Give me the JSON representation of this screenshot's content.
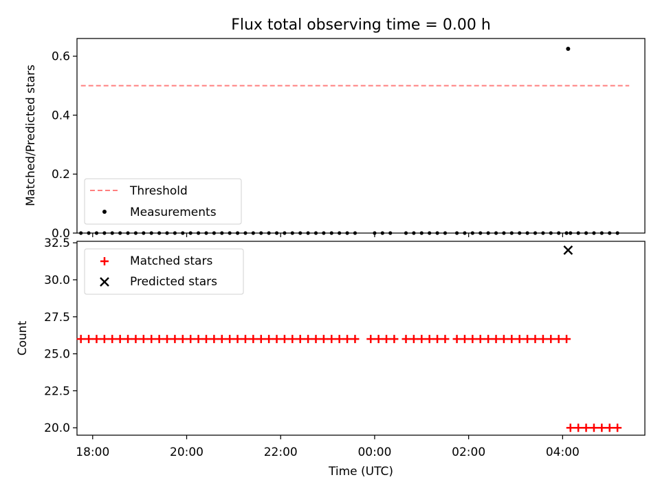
{
  "chart_data": [
    {
      "type": "scatter",
      "title": "Flux total observing time = 0.00 h",
      "xlabel": "",
      "ylabel": "Matched/Predicted stars",
      "x_is_time": true,
      "xlim": [
        "17:40",
        "05:45"
      ],
      "ylim": [
        0,
        0.66
      ],
      "yticks": [
        "0.0",
        "0.2",
        "0.4",
        "0.6"
      ],
      "legend": {
        "placement": "lower-left",
        "entries": [
          "Threshold",
          "Measurements"
        ]
      },
      "series": [
        {
          "name": "Threshold",
          "style": "dashed-line",
          "color": "#ff7f7f",
          "x": [
            "17:45",
            "05:25"
          ],
          "y": [
            0.5,
            0.5
          ]
        },
        {
          "name": "Measurements",
          "style": "dot",
          "color": "#000000",
          "x": [
            "04:07"
          ],
          "y": [
            0.625
          ],
          "zero_run_x": {
            "from": [
              "17:45",
              "00:00",
              "00:40",
              "01:45",
              "02:35",
              "04:10"
            ],
            "to": [
              "23:35",
              "00:25",
              "01:35",
              "02:25",
              "04:05",
              "05:10"
            ]
          }
        }
      ]
    },
    {
      "type": "scatter",
      "title": "",
      "xlabel": "Time (UTC)",
      "ylabel": "Count",
      "x_is_time": true,
      "xlim": [
        "17:40",
        "05:45"
      ],
      "ylim": [
        19.5,
        32.6
      ],
      "yticks": [
        "20.0",
        "22.5",
        "25.0",
        "27.5",
        "30.0",
        "32.5"
      ],
      "xticks": [
        "18:00",
        "20:00",
        "22:00",
        "00:00",
        "02:00",
        "04:00"
      ],
      "legend": {
        "placement": "upper-left",
        "entries": [
          "Matched stars",
          "Predicted stars"
        ]
      },
      "series": [
        {
          "name": "Matched stars",
          "marker": "plus",
          "color": "#ff0000",
          "runs": [
            {
              "from": "17:45",
              "to": "23:35",
              "y": 26
            },
            {
              "from": "23:55",
              "to": "00:25",
              "y": 26
            },
            {
              "from": "00:40",
              "to": "01:35",
              "y": 26
            },
            {
              "from": "01:45",
              "to": "02:25",
              "y": 26
            },
            {
              "from": "02:35",
              "to": "04:05",
              "y": 26
            },
            {
              "from": "04:10",
              "to": "05:10",
              "y": 20
            }
          ]
        },
        {
          "name": "Predicted stars",
          "marker": "x",
          "color": "#000000",
          "x": [
            "04:07"
          ],
          "y": [
            32
          ]
        }
      ]
    }
  ]
}
